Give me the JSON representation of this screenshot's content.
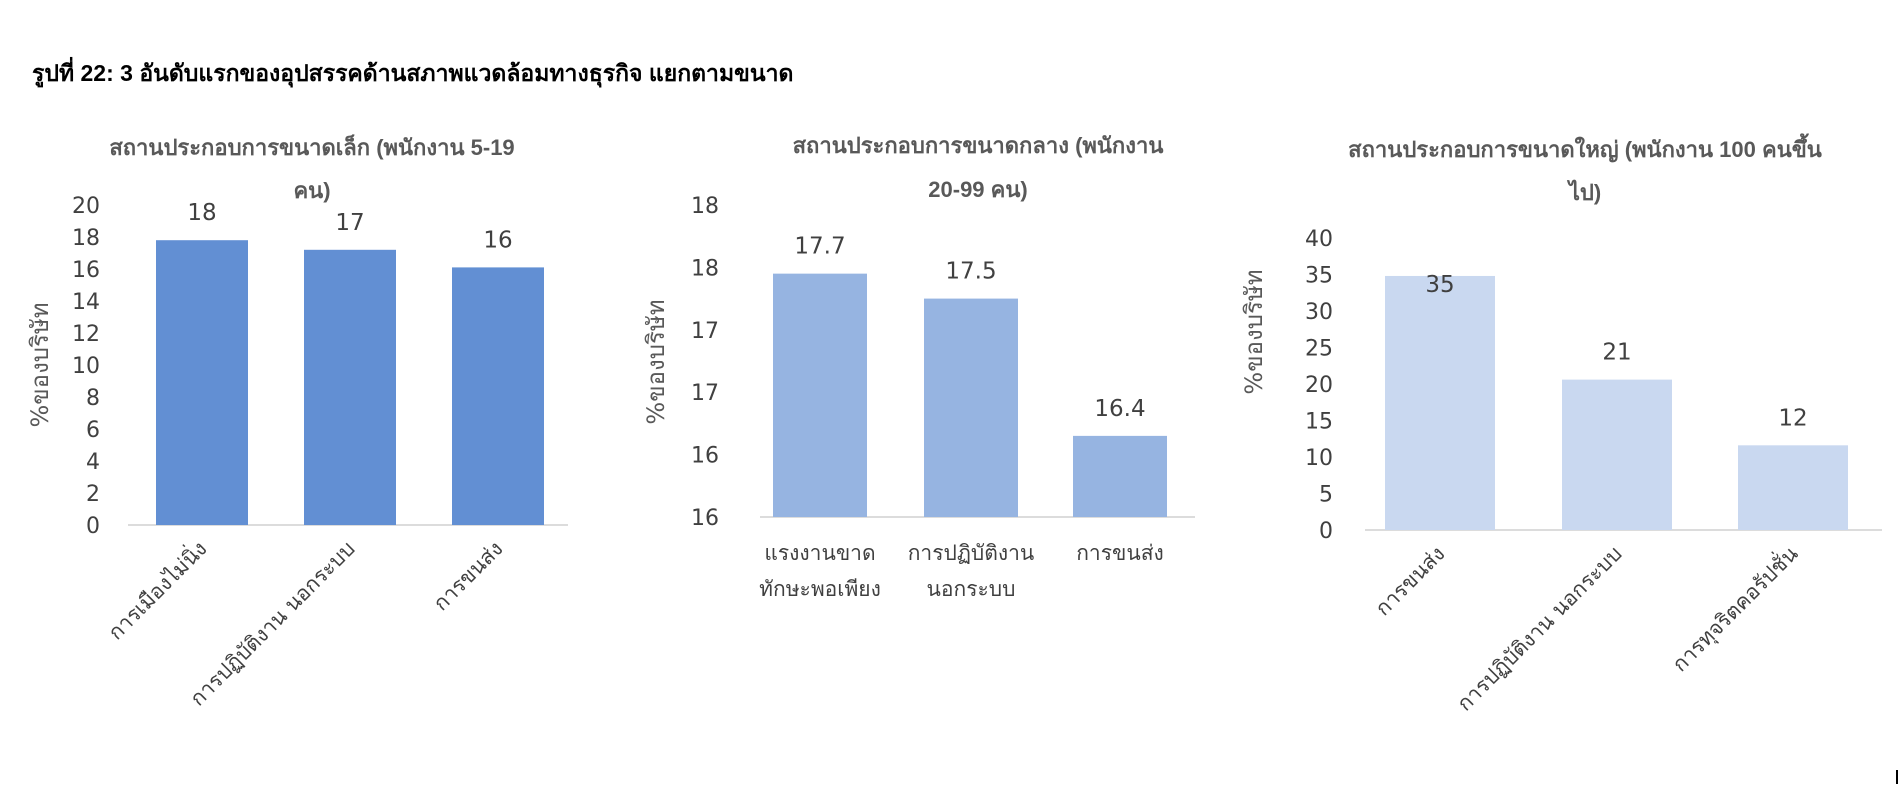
{
  "figure_title": "รูปที่ 22: 3 อันดับแรกของอุปสรรคด้านสภาพแวดล้อมทางธุรกิจ แยกตามขนาด",
  "chart_data": [
    {
      "type": "bar",
      "title": [
        "สถานประกอบการขนาดเล็ก (พนักงาน 5-19",
        "คน)"
      ],
      "ylabel": "%ของบริษัท",
      "xlabel": "",
      "categories": [
        "การเมืองไม่นิ่ง",
        "การปฏิบัติงาน นอกระบบ",
        "การขนส่ง"
      ],
      "category_label_style": "rotated",
      "values": [
        18,
        17,
        16
      ],
      "bar_values": [
        17.8,
        17.2,
        16.1
      ],
      "data_labels": [
        "18",
        "17",
        "16"
      ],
      "yticks": [
        "0",
        "2",
        "4",
        "6",
        "8",
        "10",
        "12",
        "14",
        "16",
        "18",
        "20"
      ],
      "ylim": [
        0,
        20
      ],
      "color": "#628FD3",
      "grid": false,
      "legend": "none"
    },
    {
      "type": "bar",
      "title": [
        "สถานประกอบการขนาดกลาง (พนักงาน",
        "20-99 คน)"
      ],
      "ylabel": "%ของบริษัท",
      "xlabel": "",
      "categories": [
        [
          "แรงงานขาด",
          "ทักษะพอเพียง"
        ],
        [
          "การปฏิบัติงาน",
          "นอกระบบ"
        ],
        [
          "การขนส่ง"
        ]
      ],
      "category_label_style": "horizontal",
      "values": [
        17.7,
        17.5,
        16.4
      ],
      "data_labels": [
        "17.7",
        "17.5",
        "16.4"
      ],
      "yticks": [
        "16",
        "16",
        "17",
        "17",
        "18",
        "18"
      ],
      "ylim": [
        15.75,
        18.25
      ],
      "color": "#96B4E1",
      "grid": false,
      "legend": "none"
    },
    {
      "type": "bar",
      "title": [
        "สถานประกอบการขนาดใหญ่ (พนักงาน 100 คนขึ้น",
        "ไป)"
      ],
      "ylabel": "%ของบริษัท",
      "xlabel": "",
      "categories": [
        "การขนส่ง",
        "การปฏิบัติงาน นอกระบบ",
        "การทุจริตคอรัปชั่น"
      ],
      "category_label_style": "rotated",
      "values": [
        35,
        21,
        12
      ],
      "bar_values": [
        34.8,
        20.6,
        11.6
      ],
      "data_labels": [
        "35",
        "21",
        "12"
      ],
      "yticks": [
        "0",
        "5",
        "10",
        "15",
        "20",
        "25",
        "30",
        "35",
        "40"
      ],
      "ylim": [
        0,
        40
      ],
      "color": "#C9D8F0",
      "grid": false,
      "legend": "none"
    }
  ]
}
